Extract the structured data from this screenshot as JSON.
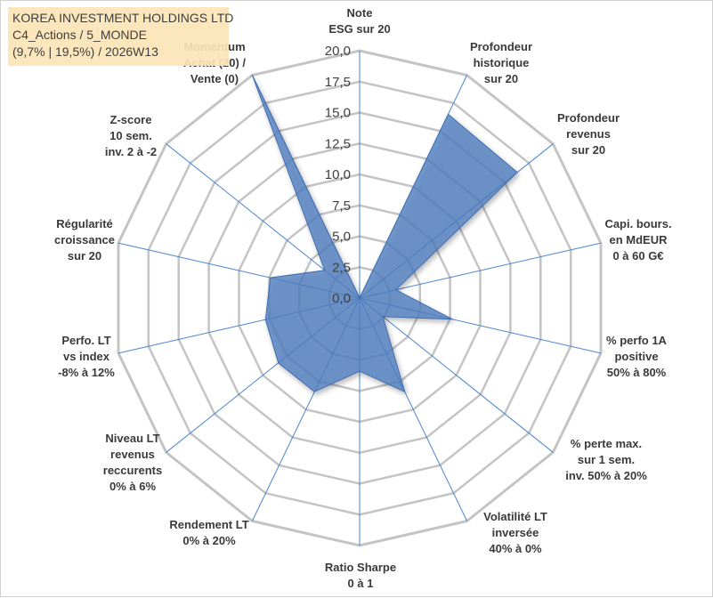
{
  "header": {
    "line1": "KOREA INVESTMENT HOLDINGS LTD",
    "line2": "C4_Actions / 5_MONDE",
    "line3": "(9,7% | 19,5%) / 2026W13"
  },
  "colors": {
    "fill": "#4f7fc0",
    "stroke": "#3d6cb0",
    "grid": "#c4c4c4",
    "spoke": "#4a86d0",
    "title_bg": "#fce4b6",
    "text": "#3a3a3a"
  },
  "chart_data": {
    "type": "radar",
    "rmin": 0,
    "rmax": 20,
    "ticks": [
      "0,0",
      "2,5",
      "5,0",
      "7,5",
      "10,0",
      "12,5",
      "15,0",
      "17,5",
      "20,0"
    ],
    "tick_values": [
      0,
      2.5,
      5,
      7.5,
      10,
      12.5,
      15,
      17.5,
      20
    ],
    "axes": [
      {
        "lines": [
          "Note",
          "ESG sur 20"
        ],
        "value": 0
      },
      {
        "lines": [
          "Profondeur",
          "historique",
          "sur 20"
        ],
        "value": 16.5
      },
      {
        "lines": [
          "Profondeur",
          "revenus",
          "sur 20"
        ],
        "value": 16.3
      },
      {
        "lines": [
          "Capi. bours.",
          "en MdEUR",
          "0 à 60 G€"
        ],
        "value": 3.0
      },
      {
        "lines": [
          "% perfo 1A",
          "positive",
          "50% à 80%"
        ],
        "value": 7.7
      },
      {
        "lines": [
          "% perte max.",
          "sur 1 sem.",
          "inv. 50% à 20%"
        ],
        "value": 2.4
      },
      {
        "lines": [
          "Volatilité LT",
          "inversée",
          "40% à 0%"
        ],
        "value": 8.4
      },
      {
        "lines": [
          "Ratio Sharpe",
          "0 à 1"
        ],
        "value": 5.9
      },
      {
        "lines": [
          "Rendement LT",
          "0% à 20%"
        ],
        "value": 8.4
      },
      {
        "lines": [
          "Niveau LT",
          "revenus",
          "reccurents",
          "0% à 6%"
        ],
        "value": 8.4
      },
      {
        "lines": [
          "Perfo. LT",
          "vs index",
          "-8% à 12%"
        ],
        "value": 7.8
      },
      {
        "lines": [
          "Régularité",
          "croissance",
          "sur 20"
        ],
        "value": 7.4
      },
      {
        "lines": [
          "Z-score",
          "10 sem.",
          "inv. 2 à -2"
        ],
        "value": 3.6
      },
      {
        "lines": [
          "Momentum",
          "Achat (20) /",
          "Vente (0)"
        ],
        "value": 20.0
      }
    ]
  }
}
